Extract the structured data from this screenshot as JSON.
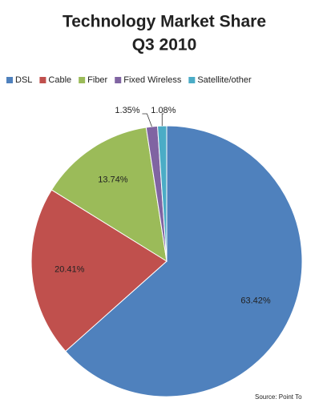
{
  "chart_data": {
    "type": "pie",
    "title": "Technology Market Share",
    "subtitle": "Q3 2010",
    "categories": [
      "DSL",
      "Cable",
      "Fiber",
      "Fixed Wireless",
      "Satellite/other"
    ],
    "values": [
      63.42,
      20.41,
      13.74,
      1.35,
      1.08
    ],
    "value_labels": [
      "63.42%",
      "20.41%",
      "13.74%",
      "1.35%",
      "1.08%"
    ],
    "colors": [
      "#4f81bd",
      "#c0504d",
      "#9bbb59",
      "#8064a2",
      "#4bacc6"
    ],
    "legend": "top",
    "source": "Source: Point To"
  }
}
